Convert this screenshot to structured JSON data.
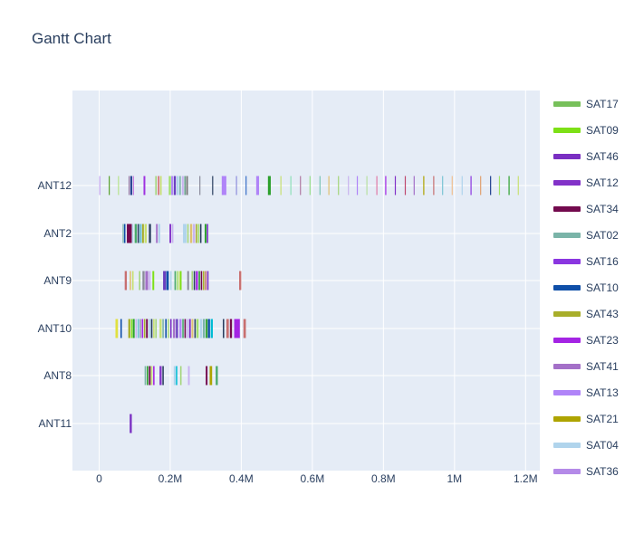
{
  "chart_data": {
    "type": "gantt",
    "title": "Gantt Chart",
    "xlabel": "",
    "ylabel": "",
    "xlim": [
      -75000,
      1240000
    ],
    "x_ticks": [
      {
        "value": 0,
        "label": "0"
      },
      {
        "value": 200000,
        "label": "0.2M"
      },
      {
        "value": 400000,
        "label": "0.4M"
      },
      {
        "value": 600000,
        "label": "0.6M"
      },
      {
        "value": 800000,
        "label": "0.8M"
      },
      {
        "value": 1000000,
        "label": "1M"
      },
      {
        "value": 1200000,
        "label": "1.2M"
      }
    ],
    "categories": [
      "ANT12",
      "ANT2",
      "ANT9",
      "ANT10",
      "ANT8",
      "ANT11"
    ],
    "grid": true,
    "legend_position": "right",
    "series": [
      {
        "name": "SAT17",
        "color": "#77c05a"
      },
      {
        "name": "SAT09",
        "color": "#7de016"
      },
      {
        "name": "SAT46",
        "color": "#7a2fc2"
      },
      {
        "name": "SAT12",
        "color": "#8232c8"
      },
      {
        "name": "SAT34",
        "color": "#730a4e"
      },
      {
        "name": "SAT02",
        "color": "#7ab4a8"
      },
      {
        "name": "SAT16",
        "color": "#8a36e0"
      },
      {
        "name": "SAT10",
        "color": "#0f4fa8"
      },
      {
        "name": "SAT43",
        "color": "#a8ae2a"
      },
      {
        "name": "SAT23",
        "color": "#a424e4"
      },
      {
        "name": "SAT41",
        "color": "#a470c8"
      },
      {
        "name": "SAT13",
        "color": "#b084f8"
      },
      {
        "name": "SAT21",
        "color": "#aea400"
      },
      {
        "name": "SAT04",
        "color": "#b0d4ec"
      },
      {
        "name": "SAT36",
        "color": "#b48ae8"
      }
    ],
    "tasks": [
      {
        "row": "ANT12",
        "s": 0,
        "e": 4000,
        "c": "#c9b3f0"
      },
      {
        "row": "ANT12",
        "s": 27000,
        "e": 30000,
        "c": "#5aa02c"
      },
      {
        "row": "ANT12",
        "s": 53000,
        "e": 56000,
        "c": "#b7e48c"
      },
      {
        "row": "ANT12",
        "s": 83000,
        "e": 86000,
        "c": "#8e6f9e"
      },
      {
        "row": "ANT12",
        "s": 88000,
        "e": 93000,
        "c": "#1f3f8f"
      },
      {
        "row": "ANT12",
        "s": 95000,
        "e": 98000,
        "c": "#c678dd"
      },
      {
        "row": "ANT12",
        "s": 125000,
        "e": 130000,
        "c": "#9f30e0"
      },
      {
        "row": "ANT12",
        "s": 158000,
        "e": 162000,
        "c": "#a5d57a"
      },
      {
        "row": "ANT12",
        "s": 165000,
        "e": 170000,
        "c": "#d77b7b"
      },
      {
        "row": "ANT12",
        "s": 172000,
        "e": 176000,
        "c": "#c8e070"
      },
      {
        "row": "ANT12",
        "s": 196000,
        "e": 202000,
        "c": "#a3e16b"
      },
      {
        "row": "ANT12",
        "s": 203000,
        "e": 208000,
        "c": "#b084f8"
      },
      {
        "row": "ANT12",
        "s": 210000,
        "e": 216000,
        "c": "#6a3fbf"
      },
      {
        "row": "ANT12",
        "s": 218000,
        "e": 224000,
        "c": "#b0d4ec"
      },
      {
        "row": "ANT12",
        "s": 226000,
        "e": 230000,
        "c": "#7ab4a8"
      },
      {
        "row": "ANT12",
        "s": 233000,
        "e": 238000,
        "c": "#c9b3f0"
      },
      {
        "row": "ANT12",
        "s": 240000,
        "e": 243000,
        "c": "#4a8f6f"
      },
      {
        "row": "ANT12",
        "s": 245000,
        "e": 250000,
        "c": "#7a7a7a"
      },
      {
        "row": "ANT12",
        "s": 282000,
        "e": 285000,
        "c": "#8a8a9a"
      },
      {
        "row": "ANT12",
        "s": 318000,
        "e": 321000,
        "c": "#2a3f5f"
      },
      {
        "row": "ANT12",
        "s": 345000,
        "e": 358000,
        "c": "#b084f8"
      },
      {
        "row": "ANT12",
        "s": 385000,
        "e": 388000,
        "c": "#8e8edc"
      },
      {
        "row": "ANT12",
        "s": 412000,
        "e": 415000,
        "c": "#3a6fc8"
      },
      {
        "row": "ANT12",
        "s": 442000,
        "e": 450000,
        "c": "#b084f8"
      },
      {
        "row": "ANT12",
        "s": 475000,
        "e": 483000,
        "c": "#2ca02c"
      },
      {
        "row": "ANT12",
        "s": 510000,
        "e": 513000,
        "c": "#c8e070"
      },
      {
        "row": "ANT12",
        "s": 538000,
        "e": 541000,
        "c": "#8fe0b8"
      },
      {
        "row": "ANT12",
        "s": 565000,
        "e": 568000,
        "c": "#b07aa1"
      },
      {
        "row": "ANT12",
        "s": 592000,
        "e": 595000,
        "c": "#98df8a"
      },
      {
        "row": "ANT12",
        "s": 620000,
        "e": 623000,
        "c": "#7ac4b4"
      },
      {
        "row": "ANT12",
        "s": 645000,
        "e": 648000,
        "c": "#e0c070"
      },
      {
        "row": "ANT12",
        "s": 672000,
        "e": 675000,
        "c": "#a5d57a"
      },
      {
        "row": "ANT12",
        "s": 700000,
        "e": 703000,
        "c": "#c9b3f0"
      },
      {
        "row": "ANT12",
        "s": 725000,
        "e": 728000,
        "c": "#b084f8"
      },
      {
        "row": "ANT12",
        "s": 752000,
        "e": 755000,
        "c": "#b8e0a0"
      },
      {
        "row": "ANT12",
        "s": 780000,
        "e": 783000,
        "c": "#e07aa8"
      },
      {
        "row": "ANT12",
        "s": 805000,
        "e": 808000,
        "c": "#a424e4"
      },
      {
        "row": "ANT12",
        "s": 832000,
        "e": 835000,
        "c": "#8232c8"
      },
      {
        "row": "ANT12",
        "s": 860000,
        "e": 863000,
        "c": "#c04a6f"
      },
      {
        "row": "ANT12",
        "s": 885000,
        "e": 888000,
        "c": "#a470c8"
      },
      {
        "row": "ANT12",
        "s": 912000,
        "e": 915000,
        "c": "#aea400"
      },
      {
        "row": "ANT12",
        "s": 940000,
        "e": 943000,
        "c": "#c87070"
      },
      {
        "row": "ANT12",
        "s": 965000,
        "e": 968000,
        "c": "#7ac4d4"
      },
      {
        "row": "ANT12",
        "s": 992000,
        "e": 995000,
        "c": "#f0c090"
      },
      {
        "row": "ANT12",
        "s": 1020000,
        "e": 1023000,
        "c": "#b0d4ec"
      },
      {
        "row": "ANT12",
        "s": 1045000,
        "e": 1048000,
        "c": "#8a36e0"
      },
      {
        "row": "ANT12",
        "s": 1072000,
        "e": 1075000,
        "c": "#e0a070"
      },
      {
        "row": "ANT12",
        "s": 1100000,
        "e": 1103000,
        "c": "#1f3f8f"
      },
      {
        "row": "ANT12",
        "s": 1125000,
        "e": 1128000,
        "c": "#a3e16b"
      },
      {
        "row": "ANT12",
        "s": 1152000,
        "e": 1155000,
        "c": "#2ca02c"
      },
      {
        "row": "ANT12",
        "s": 1178000,
        "e": 1181000,
        "c": "#c8e070"
      },
      {
        "row": "ANT2",
        "s": 66000,
        "e": 69000,
        "c": "#7ab4a8"
      },
      {
        "row": "ANT2",
        "s": 70000,
        "e": 74000,
        "c": "#0f4fa8"
      },
      {
        "row": "ANT2",
        "s": 78000,
        "e": 92000,
        "c": "#730a4e"
      },
      {
        "row": "ANT2",
        "s": 93000,
        "e": 96000,
        "c": "#b0d4ec"
      },
      {
        "row": "ANT2",
        "s": 100000,
        "e": 106000,
        "c": "#4aaa6a"
      },
      {
        "row": "ANT2",
        "s": 108000,
        "e": 112000,
        "c": "#2a3f5f"
      },
      {
        "row": "ANT2",
        "s": 113000,
        "e": 120000,
        "c": "#7ac4d4"
      },
      {
        "row": "ANT2",
        "s": 121000,
        "e": 126000,
        "c": "#a8ae2a"
      },
      {
        "row": "ANT2",
        "s": 128000,
        "e": 134000,
        "c": "#c8e070"
      },
      {
        "row": "ANT2",
        "s": 140000,
        "e": 146000,
        "c": "#2a3f5f"
      },
      {
        "row": "ANT2",
        "s": 160000,
        "e": 165000,
        "c": "#a470c8"
      },
      {
        "row": "ANT2",
        "s": 167000,
        "e": 172000,
        "c": "#b0d4ec"
      },
      {
        "row": "ANT2",
        "s": 198000,
        "e": 203000,
        "c": "#8232c8"
      },
      {
        "row": "ANT2",
        "s": 205000,
        "e": 209000,
        "c": "#c9b3f0"
      },
      {
        "row": "ANT2",
        "s": 236000,
        "e": 246000,
        "c": "#b0d4ec"
      },
      {
        "row": "ANT2",
        "s": 248000,
        "e": 252000,
        "c": "#a5d57a"
      },
      {
        "row": "ANT2",
        "s": 256000,
        "e": 262000,
        "c": "#e0c070"
      },
      {
        "row": "ANT2",
        "s": 264000,
        "e": 270000,
        "c": "#c9b3f0"
      },
      {
        "row": "ANT2",
        "s": 272000,
        "e": 276000,
        "c": "#a8ae2a"
      },
      {
        "row": "ANT2",
        "s": 278000,
        "e": 282000,
        "c": "#a3e16b"
      },
      {
        "row": "ANT2",
        "s": 284000,
        "e": 288000,
        "c": "#2a3f5f"
      },
      {
        "row": "ANT2",
        "s": 297000,
        "e": 302000,
        "c": "#2ca02c"
      },
      {
        "row": "ANT2",
        "s": 303000,
        "e": 307000,
        "c": "#7a2fc2"
      },
      {
        "row": "ANT9",
        "s": 72000,
        "e": 78000,
        "c": "#c87070"
      },
      {
        "row": "ANT9",
        "s": 86000,
        "e": 90000,
        "c": "#e0c070"
      },
      {
        "row": "ANT9",
        "s": 93000,
        "e": 97000,
        "c": "#c8e070"
      },
      {
        "row": "ANT9",
        "s": 112000,
        "e": 116000,
        "c": "#a5d57a"
      },
      {
        "row": "ANT9",
        "s": 122000,
        "e": 128000,
        "c": "#8a8a9a"
      },
      {
        "row": "ANT9",
        "s": 130000,
        "e": 138000,
        "c": "#a470c8"
      },
      {
        "row": "ANT9",
        "s": 140000,
        "e": 145000,
        "c": "#c9b3f0"
      },
      {
        "row": "ANT9",
        "s": 150000,
        "e": 155000,
        "c": "#7de016"
      },
      {
        "row": "ANT9",
        "s": 180000,
        "e": 188000,
        "c": "#6a3fbf"
      },
      {
        "row": "ANT9",
        "s": 189000,
        "e": 196000,
        "c": "#0f4fa8"
      },
      {
        "row": "ANT9",
        "s": 200000,
        "e": 204000,
        "c": "#b0d4ec"
      },
      {
        "row": "ANT9",
        "s": 212000,
        "e": 216000,
        "c": "#4aaa6a"
      },
      {
        "row": "ANT9",
        "s": 218000,
        "e": 222000,
        "c": "#a3e16b"
      },
      {
        "row": "ANT9",
        "s": 224000,
        "e": 228000,
        "c": "#c8e070"
      },
      {
        "row": "ANT9",
        "s": 228000,
        "e": 232000,
        "c": "#7de016"
      },
      {
        "row": "ANT9",
        "s": 248000,
        "e": 253000,
        "c": "#8a8a9a"
      },
      {
        "row": "ANT9",
        "s": 260000,
        "e": 264000,
        "c": "#a5d57a"
      },
      {
        "row": "ANT9",
        "s": 266000,
        "e": 270000,
        "c": "#2a3f5f"
      },
      {
        "row": "ANT9",
        "s": 272000,
        "e": 278000,
        "c": "#a424e4"
      },
      {
        "row": "ANT9",
        "s": 280000,
        "e": 284000,
        "c": "#2ca02c"
      },
      {
        "row": "ANT9",
        "s": 286000,
        "e": 290000,
        "c": "#730a4e"
      },
      {
        "row": "ANT9",
        "s": 292000,
        "e": 296000,
        "c": "#a8ae2a"
      },
      {
        "row": "ANT9",
        "s": 298000,
        "e": 302000,
        "c": "#c87070"
      },
      {
        "row": "ANT9",
        "s": 304000,
        "e": 308000,
        "c": "#7a2fc2"
      },
      {
        "row": "ANT9",
        "s": 394000,
        "e": 400000,
        "c": "#c87070"
      },
      {
        "row": "ANT10",
        "s": 46000,
        "e": 53000,
        "c": "#e0e040"
      },
      {
        "row": "ANT10",
        "s": 60000,
        "e": 64000,
        "c": "#0f4fa8"
      },
      {
        "row": "ANT10",
        "s": 82000,
        "e": 88000,
        "c": "#a8ae2a"
      },
      {
        "row": "ANT10",
        "s": 90000,
        "e": 94000,
        "c": "#7de016"
      },
      {
        "row": "ANT10",
        "s": 95000,
        "e": 100000,
        "c": "#2ca02c"
      },
      {
        "row": "ANT10",
        "s": 102000,
        "e": 106000,
        "c": "#c9b3f0"
      },
      {
        "row": "ANT10",
        "s": 108000,
        "e": 113000,
        "c": "#7ac4d4"
      },
      {
        "row": "ANT10",
        "s": 115000,
        "e": 118000,
        "c": "#8a8a9a"
      },
      {
        "row": "ANT10",
        "s": 120000,
        "e": 124000,
        "c": "#a424e4"
      },
      {
        "row": "ANT10",
        "s": 126000,
        "e": 130000,
        "c": "#a8ae2a"
      },
      {
        "row": "ANT10",
        "s": 132000,
        "e": 137000,
        "c": "#730a4e"
      },
      {
        "row": "ANT10",
        "s": 140000,
        "e": 145000,
        "c": "#b0d4ec"
      },
      {
        "row": "ANT10",
        "s": 146000,
        "e": 150000,
        "c": "#2a3f5f"
      },
      {
        "row": "ANT10",
        "s": 152000,
        "e": 156000,
        "c": "#c8e070"
      },
      {
        "row": "ANT10",
        "s": 158000,
        "e": 162000,
        "c": "#a5d57a"
      },
      {
        "row": "ANT10",
        "s": 170000,
        "e": 176000,
        "c": "#c8e070"
      },
      {
        "row": "ANT10",
        "s": 178000,
        "e": 182000,
        "c": "#7ab4a8"
      },
      {
        "row": "ANT10",
        "s": 186000,
        "e": 190000,
        "c": "#0f4fa8"
      },
      {
        "row": "ANT10",
        "s": 193000,
        "e": 197000,
        "c": "#a5d57a"
      },
      {
        "row": "ANT10",
        "s": 200000,
        "e": 204000,
        "c": "#7a2fc2"
      },
      {
        "row": "ANT10",
        "s": 208000,
        "e": 214000,
        "c": "#a470c8"
      },
      {
        "row": "ANT10",
        "s": 216000,
        "e": 222000,
        "c": "#6a3fbf"
      },
      {
        "row": "ANT10",
        "s": 226000,
        "e": 232000,
        "c": "#b084f8"
      },
      {
        "row": "ANT10",
        "s": 234000,
        "e": 238000,
        "c": "#4aaa6a"
      },
      {
        "row": "ANT10",
        "s": 240000,
        "e": 244000,
        "c": "#730a4e"
      },
      {
        "row": "ANT10",
        "s": 246000,
        "e": 250000,
        "c": "#c9b3f0"
      },
      {
        "row": "ANT10",
        "s": 253000,
        "e": 258000,
        "c": "#8232c8"
      },
      {
        "row": "ANT10",
        "s": 260000,
        "e": 265000,
        "c": "#e0c070"
      },
      {
        "row": "ANT10",
        "s": 268000,
        "e": 272000,
        "c": "#2a3f5f"
      },
      {
        "row": "ANT10",
        "s": 274000,
        "e": 280000,
        "c": "#a3e16b"
      },
      {
        "row": "ANT10",
        "s": 284000,
        "e": 290000,
        "c": "#b0d4ec"
      },
      {
        "row": "ANT10",
        "s": 292000,
        "e": 298000,
        "c": "#7ab4a8"
      },
      {
        "row": "ANT10",
        "s": 300000,
        "e": 305000,
        "c": "#2ca02c"
      },
      {
        "row": "ANT10",
        "s": 306000,
        "e": 312000,
        "c": "#0f4fa8"
      },
      {
        "row": "ANT10",
        "s": 314000,
        "e": 320000,
        "c": "#00bcd4"
      },
      {
        "row": "ANT10",
        "s": 348000,
        "e": 352000,
        "c": "#2a3f5f"
      },
      {
        "row": "ANT10",
        "s": 358000,
        "e": 365000,
        "c": "#c87070"
      },
      {
        "row": "ANT10",
        "s": 368000,
        "e": 374000,
        "c": "#730a4e"
      },
      {
        "row": "ANT10",
        "s": 380000,
        "e": 396000,
        "c": "#a424e4"
      },
      {
        "row": "ANT10",
        "s": 406000,
        "e": 413000,
        "c": "#c87070"
      },
      {
        "row": "ANT8",
        "s": 128000,
        "e": 132000,
        "c": "#7ab4a8"
      },
      {
        "row": "ANT8",
        "s": 134000,
        "e": 138000,
        "c": "#2ca02c"
      },
      {
        "row": "ANT8",
        "s": 140000,
        "e": 145000,
        "c": "#730a4e"
      },
      {
        "row": "ANT8",
        "s": 146000,
        "e": 150000,
        "c": "#c8e070"
      },
      {
        "row": "ANT8",
        "s": 152000,
        "e": 156000,
        "c": "#a424e4"
      },
      {
        "row": "ANT8",
        "s": 170000,
        "e": 176000,
        "c": "#8232c8"
      },
      {
        "row": "ANT8",
        "s": 178000,
        "e": 182000,
        "c": "#2a3f5f"
      },
      {
        "row": "ANT8",
        "s": 210000,
        "e": 215000,
        "c": "#b0d4ec"
      },
      {
        "row": "ANT8",
        "s": 216000,
        "e": 220000,
        "c": "#00bcd4"
      },
      {
        "row": "ANT8",
        "s": 228000,
        "e": 232000,
        "c": "#a5d57a"
      },
      {
        "row": "ANT8",
        "s": 250000,
        "e": 255000,
        "c": "#c9b3f0"
      },
      {
        "row": "ANT8",
        "s": 300000,
        "e": 305000,
        "c": "#730a4e"
      },
      {
        "row": "ANT8",
        "s": 311000,
        "e": 318000,
        "c": "#aea400"
      },
      {
        "row": "ANT8",
        "s": 328000,
        "e": 334000,
        "c": "#4aaa6a"
      },
      {
        "row": "ANT11",
        "s": 86000,
        "e": 92000,
        "c": "#7a2fc2"
      }
    ]
  }
}
